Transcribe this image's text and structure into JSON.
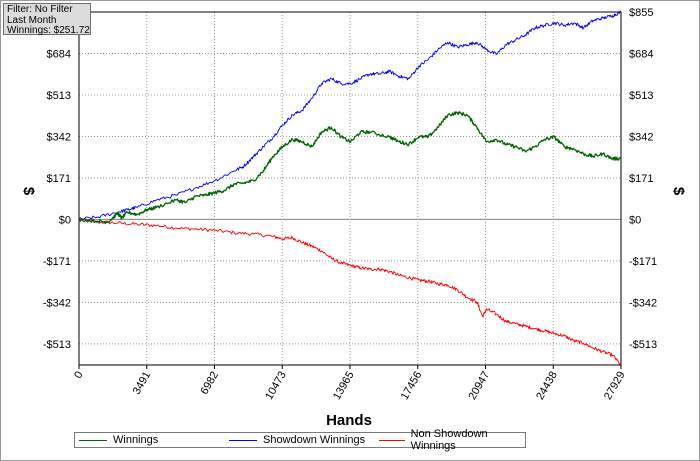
{
  "info_box": {
    "filter": "Filter: No Filter",
    "period": "Last Month",
    "winnings": "Winnings: $251.72"
  },
  "colors": {
    "winnings": "#006400",
    "showdown": "#0000ff",
    "non_showdown": "#ff0000",
    "grid": "#9a9a9a",
    "zero_line": "#808080"
  },
  "chart_data": {
    "type": "line",
    "title": "",
    "xlabel": "Hands",
    "ylabel": "$",
    "xlim": [
      0,
      27929
    ],
    "ylim": [
      -600,
      855
    ],
    "grid": true,
    "legend_placement": "bottom",
    "x_ticks": [
      "0",
      "3491",
      "6982",
      "10473",
      "13965",
      "17456",
      "20947",
      "24438",
      "27929"
    ],
    "y_ticks": [
      {
        "value": 855,
        "label": "$855"
      },
      {
        "value": 684,
        "label": "$684"
      },
      {
        "value": 513,
        "label": "$513"
      },
      {
        "value": 342,
        "label": "$342"
      },
      {
        "value": 171,
        "label": "$171"
      },
      {
        "value": 0,
        "label": "$0"
      },
      {
        "value": -171,
        "label": "-$171"
      },
      {
        "value": -342,
        "label": "-$342"
      },
      {
        "value": -513,
        "label": "-$513"
      }
    ],
    "series": [
      {
        "name": "Winnings",
        "color": "#006400",
        "points": [
          [
            0,
            0
          ],
          [
            1000,
            -8
          ],
          [
            1500,
            -10
          ],
          [
            2000,
            25
          ],
          [
            2200,
            5
          ],
          [
            2500,
            30
          ],
          [
            3000,
            20
          ],
          [
            3500,
            40
          ],
          [
            4000,
            50
          ],
          [
            5000,
            80
          ],
          [
            5500,
            70
          ],
          [
            6000,
            95
          ],
          [
            6500,
            100
          ],
          [
            7000,
            110
          ],
          [
            7500,
            120
          ],
          [
            8000,
            145
          ],
          [
            8500,
            150
          ],
          [
            9000,
            160
          ],
          [
            9500,
            200
          ],
          [
            10000,
            260
          ],
          [
            10500,
            300
          ],
          [
            11000,
            330
          ],
          [
            11500,
            320
          ],
          [
            12000,
            300
          ],
          [
            12500,
            360
          ],
          [
            13000,
            380
          ],
          [
            13500,
            340
          ],
          [
            14000,
            320
          ],
          [
            14500,
            360
          ],
          [
            15000,
            360
          ],
          [
            16000,
            340
          ],
          [
            16500,
            320
          ],
          [
            17000,
            310
          ],
          [
            17500,
            340
          ],
          [
            18000,
            340
          ],
          [
            18500,
            380
          ],
          [
            19000,
            430
          ],
          [
            19500,
            440
          ],
          [
            20000,
            430
          ],
          [
            20500,
            380
          ],
          [
            21000,
            320
          ],
          [
            21500,
            330
          ],
          [
            22000,
            310
          ],
          [
            22500,
            300
          ],
          [
            23000,
            280
          ],
          [
            23500,
            300
          ],
          [
            24000,
            330
          ],
          [
            24500,
            340
          ],
          [
            25000,
            300
          ],
          [
            25500,
            290
          ],
          [
            26000,
            270
          ],
          [
            26500,
            260
          ],
          [
            27000,
            270
          ],
          [
            27500,
            250
          ],
          [
            27929,
            251.72
          ]
        ]
      },
      {
        "name": "Showdown Winnings",
        "color": "#0000ff",
        "points": [
          [
            0,
            0
          ],
          [
            1000,
            10
          ],
          [
            2000,
            30
          ],
          [
            2500,
            40
          ],
          [
            3000,
            50
          ],
          [
            4000,
            80
          ],
          [
            5000,
            100
          ],
          [
            6000,
            130
          ],
          [
            7000,
            160
          ],
          [
            8000,
            200
          ],
          [
            8500,
            220
          ],
          [
            9000,
            260
          ],
          [
            9500,
            300
          ],
          [
            10000,
            340
          ],
          [
            10500,
            390
          ],
          [
            11000,
            430
          ],
          [
            11500,
            450
          ],
          [
            12000,
            500
          ],
          [
            12500,
            560
          ],
          [
            13000,
            580
          ],
          [
            13500,
            560
          ],
          [
            14000,
            560
          ],
          [
            14500,
            580
          ],
          [
            15000,
            600
          ],
          [
            15500,
            600
          ],
          [
            16000,
            610
          ],
          [
            16500,
            590
          ],
          [
            17000,
            580
          ],
          [
            17500,
            630
          ],
          [
            18000,
            660
          ],
          [
            18500,
            700
          ],
          [
            19000,
            730
          ],
          [
            19500,
            710
          ],
          [
            20000,
            720
          ],
          [
            20500,
            730
          ],
          [
            21000,
            700
          ],
          [
            21500,
            680
          ],
          [
            22000,
            720
          ],
          [
            22500,
            740
          ],
          [
            23000,
            760
          ],
          [
            23500,
            790
          ],
          [
            24000,
            800
          ],
          [
            24500,
            810
          ],
          [
            25000,
            800
          ],
          [
            25500,
            810
          ],
          [
            26000,
            790
          ],
          [
            26500,
            820
          ],
          [
            27000,
            830
          ],
          [
            27500,
            840
          ],
          [
            27929,
            855
          ]
        ]
      },
      {
        "name": "Non Showdown Winnings",
        "color": "#ff0000",
        "points": [
          [
            0,
            0
          ],
          [
            1000,
            -10
          ],
          [
            2000,
            -15
          ],
          [
            3000,
            -20
          ],
          [
            4000,
            -25
          ],
          [
            5000,
            -35
          ],
          [
            6000,
            -40
          ],
          [
            7000,
            -45
          ],
          [
            8000,
            -55
          ],
          [
            9000,
            -60
          ],
          [
            10000,
            -70
          ],
          [
            10500,
            -80
          ],
          [
            11000,
            -75
          ],
          [
            11500,
            -95
          ],
          [
            12000,
            -110
          ],
          [
            12500,
            -130
          ],
          [
            13000,
            -160
          ],
          [
            13500,
            -180
          ],
          [
            14000,
            -190
          ],
          [
            14500,
            -200
          ],
          [
            15000,
            -205
          ],
          [
            15500,
            -205
          ],
          [
            16000,
            -215
          ],
          [
            16500,
            -230
          ],
          [
            17000,
            -240
          ],
          [
            17500,
            -250
          ],
          [
            18000,
            -255
          ],
          [
            18500,
            -265
          ],
          [
            19000,
            -270
          ],
          [
            19500,
            -290
          ],
          [
            20000,
            -320
          ],
          [
            20500,
            -340
          ],
          [
            20800,
            -400
          ],
          [
            21000,
            -370
          ],
          [
            21500,
            -390
          ],
          [
            22000,
            -420
          ],
          [
            22500,
            -430
          ],
          [
            23000,
            -440
          ],
          [
            23500,
            -450
          ],
          [
            24000,
            -460
          ],
          [
            24500,
            -470
          ],
          [
            25000,
            -480
          ],
          [
            25500,
            -500
          ],
          [
            26000,
            -510
          ],
          [
            26500,
            -530
          ],
          [
            27000,
            -545
          ],
          [
            27500,
            -560
          ],
          [
            27929,
            -600
          ]
        ]
      }
    ]
  }
}
